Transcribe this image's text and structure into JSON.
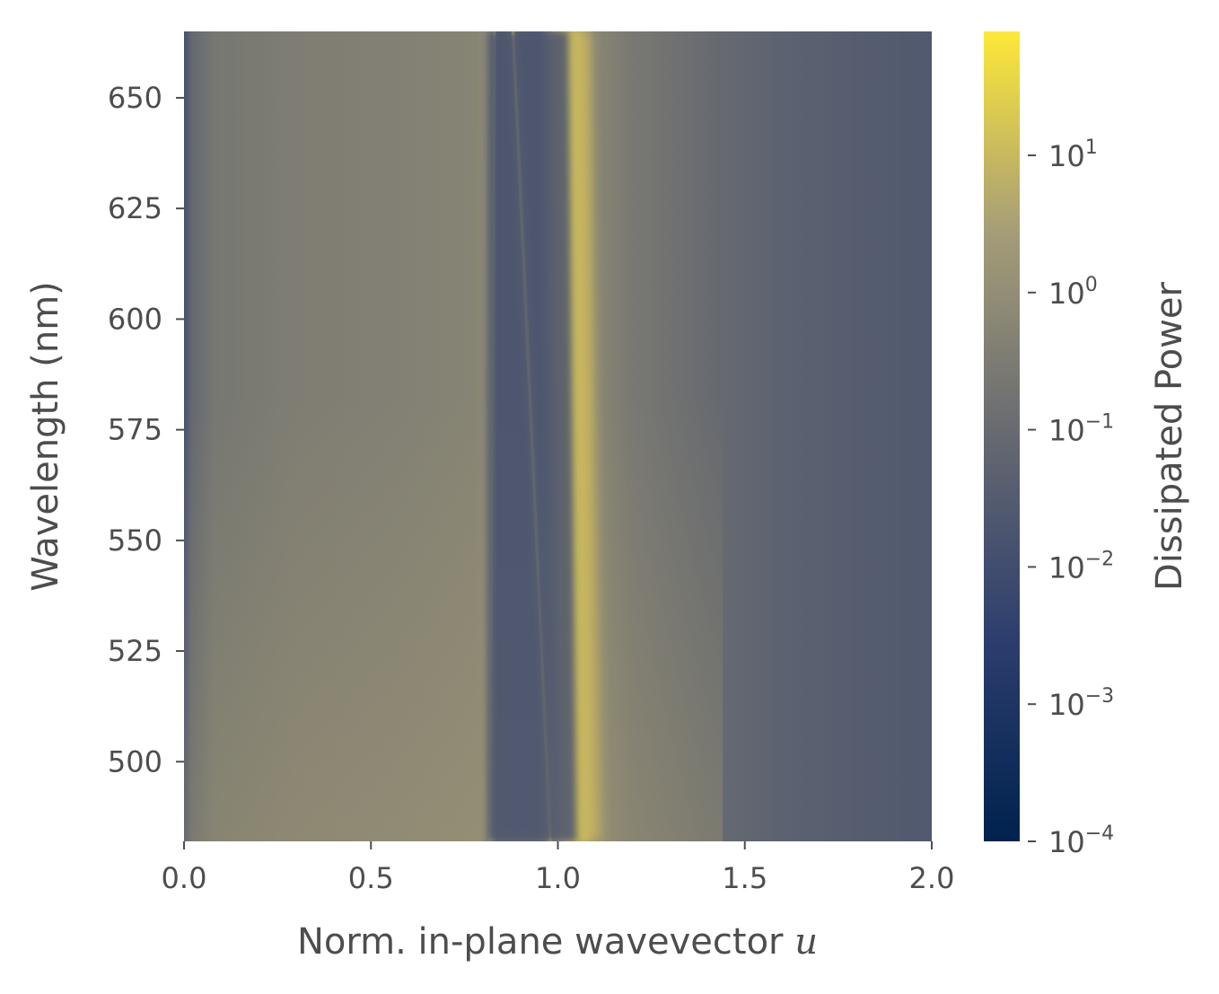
{
  "chart_data": {
    "type": "heatmap",
    "title": "",
    "xlabel": "Norm. in-plane wavevector",
    "xlabel_var": "u",
    "ylabel": "Wavelength (nm)",
    "xlim": [
      0.0,
      2.0
    ],
    "ylim": [
      482,
      665
    ],
    "x_ticks": [
      0.0,
      0.5,
      1.0,
      1.5,
      2.0
    ],
    "x_tick_labels": [
      "0.0",
      "0.5",
      "1.0",
      "1.5",
      "2.0"
    ],
    "y_ticks": [
      500,
      525,
      550,
      575,
      600,
      625,
      650
    ],
    "y_tick_labels": [
      "500",
      "525",
      "550",
      "575",
      "600",
      "625",
      "650"
    ],
    "grid": false,
    "colormap": "cividis",
    "colorbar": {
      "label": "Dissipated Power",
      "scale": "log",
      "range": [
        0.0001,
        80
      ],
      "ticks": [
        {
          "value": 0.0001,
          "base": "10",
          "exp": "−4"
        },
        {
          "value": 0.001,
          "base": "10",
          "exp": "−3"
        },
        {
          "value": 0.01,
          "base": "10",
          "exp": "−2"
        },
        {
          "value": 0.1,
          "base": "10",
          "exp": "−1"
        },
        {
          "value": 1,
          "base": "10",
          "exp": "0"
        },
        {
          "value": 10,
          "base": "10",
          "exp": "1"
        }
      ]
    },
    "features": [
      {
        "name": "bright band",
        "u_at_482nm": 1.06,
        "u_at_665nm": 1.03,
        "peak_power": 10
      },
      {
        "name": "sharp mode",
        "u_at_482nm": 0.98,
        "u_at_665nm": 0.88,
        "peak_power": 10
      },
      {
        "name": "faint mode",
        "u_at_482nm": 0.82,
        "u_at_665nm": 0.83,
        "peak_power": 3
      },
      {
        "name": "dark gap",
        "u_at_482nm": 0.93,
        "u_at_665nm": 0.92,
        "min_power": 0.02
      }
    ]
  }
}
